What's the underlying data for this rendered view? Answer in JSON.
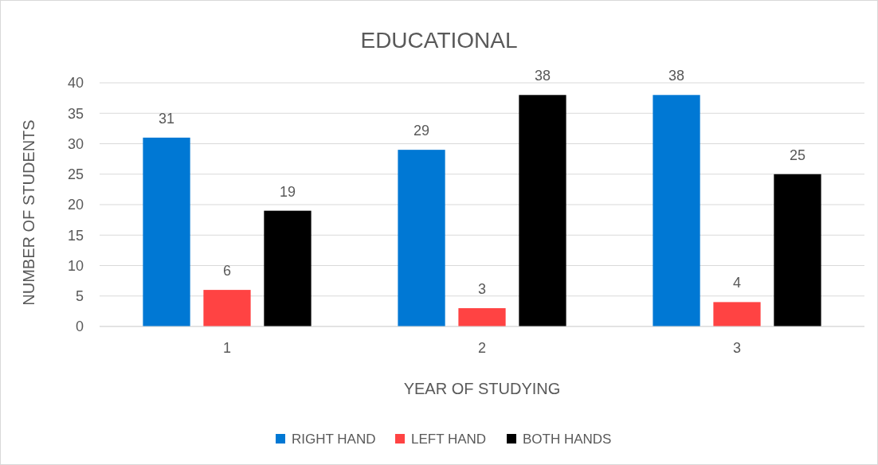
{
  "chart_data": {
    "type": "bar",
    "title": "EDUCATIONAL",
    "xlabel": "YEAR OF STUDYING",
    "ylabel": "NUMBER OF STUDENTS",
    "categories": [
      "1",
      "2",
      "3"
    ],
    "series": [
      {
        "name": "RIGHT HAND",
        "color": "#0078d4",
        "values": [
          31,
          29,
          38
        ]
      },
      {
        "name": "LEFT HAND",
        "color": "#ff4343",
        "values": [
          6,
          3,
          4
        ]
      },
      {
        "name": "BOTH HANDS",
        "color": "#000000",
        "values": [
          19,
          38,
          25
        ]
      }
    ],
    "ylim": [
      0,
      40
    ],
    "yticks": [
      0,
      5,
      10,
      15,
      20,
      25,
      30,
      35,
      40
    ],
    "grid": "y",
    "legend": "bottom",
    "data_labels": true
  }
}
